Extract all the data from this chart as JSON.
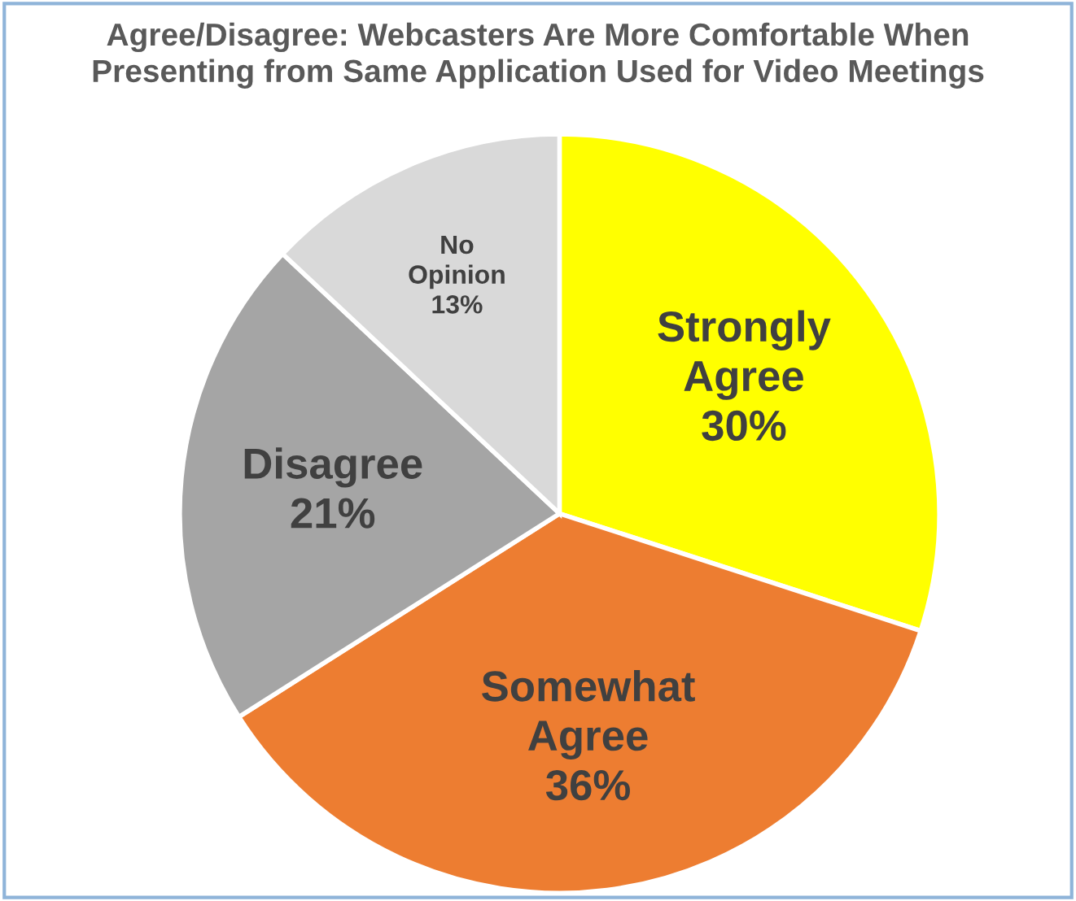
{
  "chart_data": {
    "type": "pie",
    "title": "Agree/Disagree: Webcasters Are More Comfortable When\nPresenting from Same Application Used for Video Meetings",
    "categories": [
      "Strongly Agree",
      "Somewhat Agree",
      "Disagree",
      "No Opinion"
    ],
    "values": [
      30,
      36,
      21,
      13
    ],
    "colors": [
      "#ffff00",
      "#ed7d31",
      "#a5a5a5",
      "#d9d9d9"
    ],
    "value_labels": [
      "30%",
      "36%",
      "21%",
      "13%"
    ],
    "legend": false
  }
}
